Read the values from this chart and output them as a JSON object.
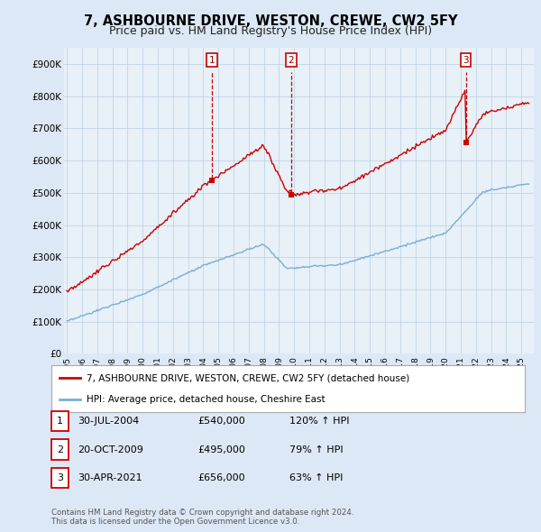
{
  "title": "7, ASHBOURNE DRIVE, WESTON, CREWE, CW2 5FY",
  "subtitle": "Price paid vs. HM Land Registry's House Price Index (HPI)",
  "ylabel_ticks": [
    "£0",
    "£100K",
    "£200K",
    "£300K",
    "£400K",
    "£500K",
    "£600K",
    "£700K",
    "£800K",
    "£900K"
  ],
  "ytick_values": [
    0,
    100000,
    200000,
    300000,
    400000,
    500000,
    600000,
    700000,
    800000,
    900000
  ],
  "ylim": [
    0,
    950000
  ],
  "xlim_start": 1994.8,
  "xlim_end": 2025.8,
  "sale_times": [
    2004.57,
    2009.8,
    2021.33
  ],
  "sale_prices": [
    540000,
    495000,
    656000
  ],
  "sale_hpi_pct": [
    "120%",
    "79%",
    "63%"
  ],
  "red_line_color": "#cc0000",
  "blue_line_color": "#7aaed6",
  "background_color": "#dce8f5",
  "plot_bg_color": "#e8f0f8",
  "legend_label_red": "7, ASHBOURNE DRIVE, WESTON, CREWE, CW2 5FY (detached house)",
  "legend_label_blue": "HPI: Average price, detached house, Cheshire East",
  "footer": "Contains HM Land Registry data © Crown copyright and database right 2024.\nThis data is licensed under the Open Government Licence v3.0.",
  "title_fontsize": 10.5,
  "subtitle_fontsize": 9
}
